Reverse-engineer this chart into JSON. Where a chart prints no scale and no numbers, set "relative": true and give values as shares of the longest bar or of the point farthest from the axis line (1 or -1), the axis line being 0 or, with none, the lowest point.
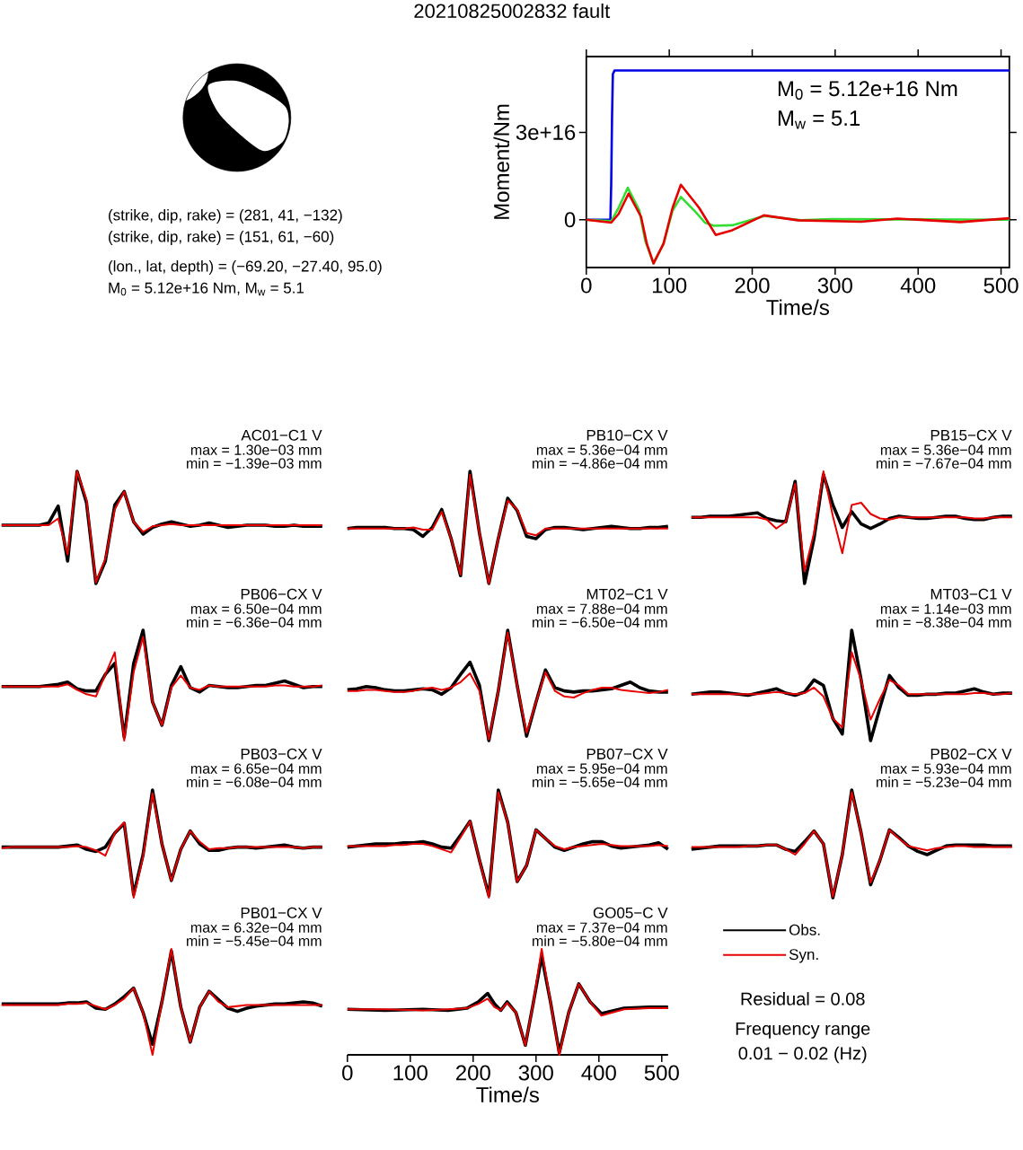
{
  "chart_data": [
    {
      "type": "other",
      "title": "20210825002832 fault",
      "annotations": [
        "(strike, dip, rake) = (281, 41, −132)",
        "(strike, dip, rake) = (151, 61, −60)",
        "(lon., lat, depth) = (−69.20, −27.40, 95.0)",
        "M$_{0}$ = 5.12e+16 Nm, M$_{w}$ = 5.1"
      ]
    },
    {
      "type": "line",
      "xlabel": "Time/s",
      "ylabel": "Moment/Nm",
      "xlim": [
        0,
        510
      ],
      "ylim": [
        -1.64e+16,
        5.6e+16
      ],
      "xticks": [
        0,
        100,
        200,
        300,
        400,
        500
      ],
      "yticks": [
        0,
        {
          "value": 3e+16,
          "label": "3e+16"
        }
      ],
      "annotations": [
        "M$_{0}$ = 5.12e+16 Nm",
        "M$_{w}$ = 5.1"
      ],
      "series": [
        {
          "color": "#0000e6",
          "x": [
            0,
            29,
            30,
            31,
            32,
            34,
            510
          ],
          "values": [
            0,
            0,
            1.2e+16,
            3.5e+16,
            5e+16,
            5.12e+16,
            5.12e+16
          ]
        },
        {
          "color": "#33dd33",
          "x": [
            0,
            30,
            39,
            50,
            64,
            71,
            81,
            93,
            104,
            114,
            132,
            143,
            154,
            176,
            215,
            259,
            295,
            510
          ],
          "values": [
            0,
            -500000000000000.0,
            4100000000000000.0,
            1.1e+16,
            3100000000000000.0,
            -7200000000000000.0,
            -1.5e+16,
            -8300000000000000.0,
            3100000000000000.0,
            7800000000000000.0,
            2600000000000000.0,
            -1000000000000000.0,
            -2100000000000000.0,
            -1900000000000000.0,
            1300000000000000.0,
            -200000000000000.0,
            200000000000000.0,
            0
          ]
        },
        {
          "color": "#e60000",
          "x": [
            0,
            30,
            39,
            51,
            66,
            73,
            81,
            93,
            104,
            114,
            136,
            156,
            176,
            214,
            255,
            331,
            375,
            451,
            510
          ],
          "values": [
            0,
            -1000000000000000.0,
            2000000000000000.0,
            9000000000000000.0,
            1000000000000000.0,
            -8300000000000000.0,
            -1.5e+16,
            -8300000000000000.0,
            4100000000000000.0,
            1.2e+16,
            4100000000000000.0,
            -5200000000000000.0,
            -3600000000000000.0,
            1500000000000000.0,
            -200000000000000.0,
            -700000000000000.0,
            400000000000000.0,
            -800000000000000.0,
            500000000000000.0
          ]
        }
      ]
    },
    {
      "type": "line",
      "relative": true,
      "tick_labels": false,
      "title": "AC01−C1 V",
      "annotations": [
        "max = 1.30e−03 mm",
        "min = −1.39e−03 mm"
      ],
      "categories": [
        null,
        null,
        null,
        null,
        null,
        null,
        null,
        null,
        null,
        null,
        null,
        null,
        null,
        null,
        null,
        null,
        null,
        null,
        null,
        null,
        null,
        null,
        null,
        null,
        null,
        null,
        null,
        null,
        null,
        null,
        null,
        null,
        null,
        null,
        null
      ],
      "series": [
        {
          "color": "#000000",
          "values": [
            0.52,
            0.52,
            0.52,
            0.52,
            0.52,
            0.54,
            0.69,
            0.2,
            1.0,
            0.72,
            0.0,
            0.2,
            0.7,
            0.82,
            0.55,
            0.44,
            0.5,
            0.53,
            0.55,
            0.53,
            0.51,
            0.52,
            0.54,
            0.52,
            0.5,
            0.51,
            0.52,
            0.52,
            0.52,
            0.51,
            0.51,
            0.52,
            0.51,
            0.51,
            0.51
          ]
        },
        {
          "color": "#e60000",
          "values": [
            0.52,
            0.52,
            0.52,
            0.52,
            0.52,
            0.52,
            0.58,
            0.26,
            1.0,
            0.75,
            0.01,
            0.22,
            0.66,
            0.82,
            0.55,
            0.46,
            0.51,
            0.52,
            0.53,
            0.52,
            0.52,
            0.52,
            0.52,
            0.52,
            0.52,
            0.52,
            0.52,
            0.52,
            0.52,
            0.52,
            0.52,
            0.52,
            0.52,
            0.52,
            0.52
          ]
        }
      ]
    },
    {
      "type": "line",
      "relative": true,
      "tick_labels": false,
      "title": "PB10−CX V",
      "annotations": [
        "max = 5.36e−04 mm",
        "min = −4.86e−04 mm"
      ],
      "categories": [
        null,
        null,
        null,
        null,
        null,
        null,
        null,
        null,
        null,
        null,
        null,
        null,
        null,
        null,
        null,
        null,
        null,
        null,
        null,
        null,
        null,
        null,
        null,
        null,
        null,
        null,
        null,
        null,
        null,
        null,
        null,
        null,
        null,
        null,
        null
      ],
      "series": [
        {
          "color": "#000000",
          "values": [
            0.49,
            0.5,
            0.5,
            0.5,
            0.5,
            0.49,
            0.49,
            0.48,
            0.42,
            0.5,
            0.66,
            0.4,
            0.07,
            1.0,
            0.45,
            0.0,
            0.4,
            0.76,
            0.65,
            0.42,
            0.4,
            0.48,
            0.5,
            0.5,
            0.49,
            0.48,
            0.49,
            0.5,
            0.51,
            0.5,
            0.49,
            0.49,
            0.5,
            0.5,
            0.51
          ]
        },
        {
          "color": "#e60000",
          "values": [
            0.49,
            0.49,
            0.49,
            0.49,
            0.49,
            0.49,
            0.49,
            0.5,
            0.48,
            0.48,
            0.64,
            0.4,
            0.08,
            0.97,
            0.45,
            0.0,
            0.4,
            0.74,
            0.66,
            0.45,
            0.43,
            0.49,
            0.49,
            0.49,
            0.49,
            0.49,
            0.49,
            0.49,
            0.49,
            0.49,
            0.49,
            0.49,
            0.49,
            0.49,
            0.49
          ]
        }
      ]
    },
    {
      "type": "line",
      "relative": true,
      "tick_labels": false,
      "title": "PB15−CX V",
      "annotations": [
        "max = 5.36e−04 mm",
        "min = −7.67e−04 mm"
      ],
      "categories": [
        null,
        null,
        null,
        null,
        null,
        null,
        null,
        null,
        null,
        null,
        null,
        null,
        null,
        null,
        null,
        null,
        null,
        null,
        null,
        null,
        null,
        null,
        null,
        null,
        null,
        null,
        null,
        null,
        null,
        null,
        null,
        null,
        null,
        null,
        null
      ],
      "series": [
        {
          "color": "#000000",
          "values": [
            0.59,
            0.59,
            0.6,
            0.6,
            0.6,
            0.61,
            0.62,
            0.63,
            0.58,
            0.56,
            0.55,
            0.91,
            0.0,
            0.4,
            0.97,
            0.7,
            0.5,
            0.64,
            0.53,
            0.49,
            0.53,
            0.58,
            0.6,
            0.59,
            0.58,
            0.58,
            0.59,
            0.6,
            0.6,
            0.58,
            0.57,
            0.57,
            0.59,
            0.6,
            0.6
          ]
        },
        {
          "color": "#e60000",
          "values": [
            0.59,
            0.59,
            0.59,
            0.59,
            0.59,
            0.59,
            0.59,
            0.59,
            0.57,
            0.49,
            0.55,
            0.89,
            0.11,
            0.45,
            1.0,
            0.6,
            0.27,
            0.7,
            0.72,
            0.62,
            0.58,
            0.57,
            0.59,
            0.59,
            0.59,
            0.59,
            0.59,
            0.59,
            0.59,
            0.59,
            0.58,
            0.58,
            0.59,
            0.59,
            0.59
          ]
        }
      ]
    },
    {
      "type": "line",
      "relative": true,
      "tick_labels": false,
      "title": "PB06−CX V",
      "annotations": [
        "max = 6.50e−04 mm",
        "min = −6.36e−04 mm"
      ],
      "categories": [
        null,
        null,
        null,
        null,
        null,
        null,
        null,
        null,
        null,
        null,
        null,
        null,
        null,
        null,
        null,
        null,
        null,
        null,
        null,
        null,
        null,
        null,
        null,
        null,
        null,
        null,
        null,
        null,
        null,
        null,
        null,
        null,
        null,
        null,
        null
      ],
      "series": [
        {
          "color": "#000000",
          "values": [
            0.49,
            0.49,
            0.49,
            0.49,
            0.49,
            0.5,
            0.51,
            0.53,
            0.47,
            0.45,
            0.45,
            0.6,
            0.7,
            0.03,
            0.7,
            1.0,
            0.35,
            0.14,
            0.5,
            0.67,
            0.48,
            0.44,
            0.5,
            0.49,
            0.48,
            0.48,
            0.49,
            0.5,
            0.5,
            0.52,
            0.54,
            0.51,
            0.48,
            0.49,
            0.49
          ]
        },
        {
          "color": "#e60000",
          "values": [
            0.49,
            0.49,
            0.49,
            0.49,
            0.49,
            0.49,
            0.49,
            0.51,
            0.46,
            0.42,
            0.4,
            0.6,
            0.8,
            0.0,
            0.62,
            0.94,
            0.35,
            0.14,
            0.48,
            0.59,
            0.48,
            0.46,
            0.5,
            0.49,
            0.49,
            0.49,
            0.49,
            0.49,
            0.49,
            0.5,
            0.5,
            0.49,
            0.49,
            0.49,
            0.5
          ]
        }
      ]
    },
    {
      "type": "line",
      "relative": true,
      "tick_labels": false,
      "title": "MT02−C1 V",
      "annotations": [
        "max = 7.88e−04 mm",
        "min = −6.50e−04 mm"
      ],
      "categories": [
        null,
        null,
        null,
        null,
        null,
        null,
        null,
        null,
        null,
        null,
        null,
        null,
        null,
        null,
        null,
        null,
        null,
        null,
        null,
        null,
        null,
        null,
        null,
        null,
        null,
        null,
        null,
        null,
        null,
        null,
        null,
        null,
        null,
        null,
        null
      ],
      "series": [
        {
          "color": "#000000",
          "values": [
            0.46,
            0.47,
            0.49,
            0.48,
            0.46,
            0.45,
            0.45,
            0.46,
            0.47,
            0.46,
            0.42,
            0.48,
            0.6,
            0.71,
            0.5,
            0.0,
            0.45,
            1.0,
            0.5,
            0.04,
            0.35,
            0.64,
            0.48,
            0.45,
            0.44,
            0.45,
            0.45,
            0.46,
            0.47,
            0.5,
            0.53,
            0.48,
            0.45,
            0.44,
            0.44
          ]
        },
        {
          "color": "#e60000",
          "values": [
            0.45,
            0.45,
            0.46,
            0.46,
            0.45,
            0.44,
            0.44,
            0.45,
            0.47,
            0.48,
            0.46,
            0.48,
            0.53,
            0.61,
            0.45,
            0.01,
            0.45,
            0.98,
            0.5,
            0.07,
            0.35,
            0.62,
            0.45,
            0.4,
            0.39,
            0.43,
            0.46,
            0.48,
            0.48,
            0.46,
            0.45,
            0.44,
            0.43,
            0.44,
            0.46
          ]
        }
      ]
    },
    {
      "type": "line",
      "relative": true,
      "tick_labels": false,
      "title": "MT03−C1 V",
      "annotations": [
        "max = 1.14e−03 mm",
        "min = −8.38e−04 mm"
      ],
      "categories": [
        null,
        null,
        null,
        null,
        null,
        null,
        null,
        null,
        null,
        null,
        null,
        null,
        null,
        null,
        null,
        null,
        null,
        null,
        null,
        null,
        null,
        null,
        null,
        null,
        null,
        null,
        null,
        null,
        null,
        null,
        null,
        null,
        null,
        null,
        null
      ],
      "series": [
        {
          "color": "#000000",
          "values": [
            0.42,
            0.43,
            0.44,
            0.44,
            0.43,
            0.42,
            0.41,
            0.43,
            0.45,
            0.47,
            0.43,
            0.41,
            0.44,
            0.55,
            0.5,
            0.2,
            0.06,
            1.0,
            0.55,
            0.0,
            0.3,
            0.59,
            0.48,
            0.41,
            0.41,
            0.42,
            0.42,
            0.43,
            0.43,
            0.45,
            0.47,
            0.44,
            0.42,
            0.43,
            0.43
          ]
        },
        {
          "color": "#e60000",
          "values": [
            0.42,
            0.42,
            0.42,
            0.42,
            0.42,
            0.42,
            0.42,
            0.42,
            0.43,
            0.44,
            0.43,
            0.42,
            0.43,
            0.48,
            0.4,
            0.2,
            0.12,
            0.8,
            0.55,
            0.19,
            0.38,
            0.55,
            0.5,
            0.42,
            0.42,
            0.42,
            0.42,
            0.42,
            0.42,
            0.42,
            0.43,
            0.43,
            0.42,
            0.42,
            0.43
          ]
        }
      ]
    },
    {
      "type": "line",
      "relative": true,
      "tick_labels": false,
      "title": "PB03−CX V",
      "annotations": [
        "max = 6.65e−04 mm",
        "min = −6.08e−04 mm"
      ],
      "categories": [
        null,
        null,
        null,
        null,
        null,
        null,
        null,
        null,
        null,
        null,
        null,
        null,
        null,
        null,
        null,
        null,
        null,
        null,
        null,
        null,
        null,
        null,
        null,
        null,
        null,
        null,
        null,
        null,
        null,
        null,
        null,
        null,
        null,
        null,
        null
      ],
      "series": [
        {
          "color": "#000000",
          "values": [
            0.47,
            0.47,
            0.47,
            0.47,
            0.47,
            0.47,
            0.47,
            0.48,
            0.49,
            0.45,
            0.43,
            0.47,
            0.6,
            0.69,
            0.03,
            0.4,
            1.0,
            0.5,
            0.16,
            0.45,
            0.62,
            0.5,
            0.44,
            0.44,
            0.46,
            0.47,
            0.47,
            0.46,
            0.47,
            0.48,
            0.49,
            0.47,
            0.46,
            0.47,
            0.47
          ]
        },
        {
          "color": "#e60000",
          "values": [
            0.46,
            0.47,
            0.47,
            0.47,
            0.47,
            0.47,
            0.47,
            0.47,
            0.48,
            0.47,
            0.44,
            0.39,
            0.6,
            0.7,
            0.0,
            0.38,
            0.97,
            0.5,
            0.16,
            0.45,
            0.62,
            0.52,
            0.45,
            0.46,
            0.46,
            0.47,
            0.47,
            0.47,
            0.47,
            0.47,
            0.47,
            0.47,
            0.46,
            0.47,
            0.47
          ]
        }
      ]
    },
    {
      "type": "line",
      "relative": true,
      "tick_labels": false,
      "title": "PB07−CX V",
      "annotations": [
        "max = 5.95e−04 mm",
        "min = −5.65e−04 mm"
      ],
      "categories": [
        null,
        null,
        null,
        null,
        null,
        null,
        null,
        null,
        null,
        null,
        null,
        null,
        null,
        null,
        null,
        null,
        null,
        null,
        null,
        null,
        null,
        null,
        null,
        null,
        null,
        null,
        null,
        null,
        null,
        null,
        null,
        null,
        null,
        null,
        null
      ],
      "series": [
        {
          "color": "#000000",
          "values": [
            0.47,
            0.48,
            0.49,
            0.5,
            0.5,
            0.5,
            0.51,
            0.51,
            0.52,
            0.5,
            0.47,
            0.46,
            0.58,
            0.71,
            0.35,
            0.02,
            1.0,
            0.7,
            0.15,
            0.3,
            0.63,
            0.55,
            0.47,
            0.44,
            0.47,
            0.5,
            0.52,
            0.52,
            0.48,
            0.46,
            0.47,
            0.48,
            0.49,
            0.51,
            0.45
          ]
        },
        {
          "color": "#e60000",
          "values": [
            0.48,
            0.48,
            0.48,
            0.48,
            0.48,
            0.49,
            0.49,
            0.5,
            0.5,
            0.48,
            0.45,
            0.42,
            0.56,
            0.71,
            0.35,
            0.0,
            0.98,
            0.7,
            0.15,
            0.3,
            0.63,
            0.55,
            0.48,
            0.45,
            0.47,
            0.48,
            0.49,
            0.5,
            0.49,
            0.48,
            0.48,
            0.48,
            0.48,
            0.49,
            0.48
          ]
        }
      ]
    },
    {
      "type": "line",
      "relative": true,
      "tick_labels": false,
      "title": "PB02−CX V",
      "annotations": [
        "max = 5.93e−04 mm",
        "min = −5.23e−04 mm"
      ],
      "categories": [
        null,
        null,
        null,
        null,
        null,
        null,
        null,
        null,
        null,
        null,
        null,
        null,
        null,
        null,
        null,
        null,
        null,
        null,
        null,
        null,
        null,
        null,
        null,
        null,
        null,
        null,
        null,
        null,
        null,
        null,
        null,
        null,
        null,
        null,
        null
      ],
      "series": [
        {
          "color": "#000000",
          "values": [
            0.45,
            0.46,
            0.47,
            0.48,
            0.48,
            0.48,
            0.48,
            0.48,
            0.49,
            0.49,
            0.45,
            0.43,
            0.52,
            0.62,
            0.5,
            0.0,
            0.4,
            1.0,
            0.6,
            0.12,
            0.35,
            0.63,
            0.56,
            0.48,
            0.43,
            0.4,
            0.44,
            0.48,
            0.49,
            0.49,
            0.49,
            0.49,
            0.48,
            0.48,
            0.48
          ]
        },
        {
          "color": "#e60000",
          "values": [
            0.47,
            0.47,
            0.47,
            0.47,
            0.47,
            0.47,
            0.48,
            0.48,
            0.49,
            0.49,
            0.45,
            0.4,
            0.5,
            0.62,
            0.5,
            0.01,
            0.4,
            0.98,
            0.6,
            0.14,
            0.35,
            0.63,
            0.55,
            0.48,
            0.46,
            0.44,
            0.46,
            0.47,
            0.48,
            0.48,
            0.47,
            0.47,
            0.47,
            0.47,
            0.47
          ]
        }
      ]
    },
    {
      "type": "line",
      "relative": true,
      "tick_labels": false,
      "title": "PB01−CX V",
      "annotations": [
        "max = 6.32e−04 mm",
        "min = −5.45e−04 mm"
      ],
      "categories": [
        null,
        null,
        null,
        null,
        null,
        null,
        null,
        null,
        null,
        null,
        null,
        null,
        null,
        null,
        null,
        null,
        null,
        null,
        null,
        null,
        null,
        null,
        null,
        null,
        null,
        null,
        null,
        null,
        null,
        null,
        null,
        null,
        null,
        null,
        null
      ],
      "series": [
        {
          "color": "#000000",
          "values": [
            0.48,
            0.48,
            0.48,
            0.48,
            0.48,
            0.48,
            0.48,
            0.49,
            0.49,
            0.5,
            0.44,
            0.43,
            0.48,
            0.55,
            0.63,
            0.4,
            0.1,
            0.5,
            0.98,
            0.45,
            0.12,
            0.45,
            0.6,
            0.52,
            0.44,
            0.41,
            0.44,
            0.46,
            0.47,
            0.48,
            0.48,
            0.49,
            0.5,
            0.49,
            0.46
          ]
        },
        {
          "color": "#e60000",
          "values": [
            0.47,
            0.47,
            0.47,
            0.47,
            0.47,
            0.47,
            0.47,
            0.48,
            0.48,
            0.49,
            0.46,
            0.43,
            0.47,
            0.53,
            0.63,
            0.4,
            0.0,
            0.5,
            1.0,
            0.45,
            0.12,
            0.45,
            0.6,
            0.5,
            0.45,
            0.46,
            0.47,
            0.47,
            0.47,
            0.47,
            0.47,
            0.47,
            0.47,
            0.47,
            0.47
          ]
        }
      ]
    },
    {
      "type": "line",
      "relative": true,
      "tick_labels": "x",
      "title": "GO05−C V",
      "xlabel": "Time/s",
      "legend": "right",
      "annotations": [
        "max = 7.37e−04 mm",
        "min = −5.80e−04 mm",
        "Residual = 0.08",
        "Frequency range",
        "0.01 − 0.02 (Hz)"
      ],
      "xlim": [
        0,
        510
      ],
      "xticks": [
        0,
        100,
        200,
        300,
        400,
        500
      ],
      "x": [
        0,
        60,
        120,
        160,
        190,
        208,
        223,
        234,
        244,
        254,
        268,
        283,
        296,
        309,
        323,
        337,
        352,
        368,
        386,
        404,
        440,
        480,
        510
      ],
      "series": [
        {
          "name": "Obs.",
          "color": "#000000",
          "values": [
            0.43,
            0.42,
            0.43,
            0.42,
            0.44,
            0.5,
            0.58,
            0.48,
            0.42,
            0.5,
            0.4,
            0.09,
            0.5,
            0.93,
            0.5,
            0.02,
            0.4,
            0.67,
            0.5,
            0.39,
            0.44,
            0.45,
            0.45
          ]
        },
        {
          "name": "Syn.",
          "color": "#e60000",
          "values": [
            0.43,
            0.43,
            0.42,
            0.43,
            0.44,
            0.48,
            0.53,
            0.45,
            0.42,
            0.49,
            0.4,
            0.09,
            0.5,
            1.0,
            0.5,
            0.0,
            0.4,
            0.67,
            0.5,
            0.37,
            0.43,
            0.44,
            0.44
          ]
        }
      ]
    }
  ]
}
